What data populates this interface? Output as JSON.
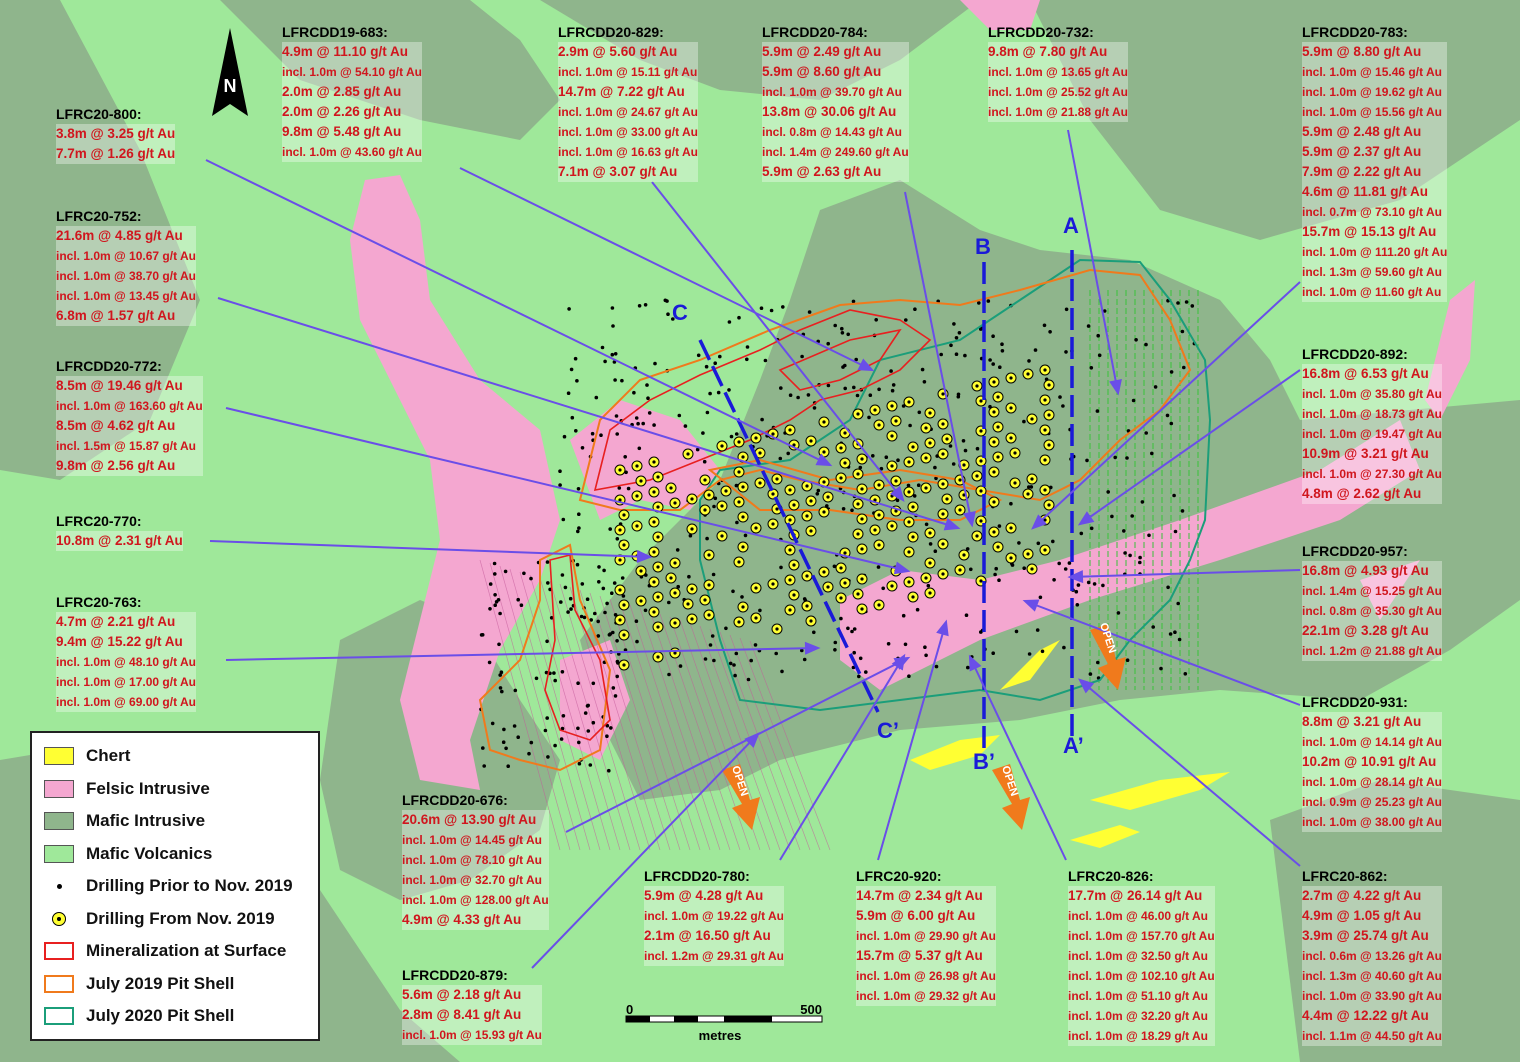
{
  "map": {
    "colors": {
      "mafic_volcanics": "#9fe89a",
      "mafic_intrusive": "#8fb58c",
      "felsic_intrusive": "#f4a7d0",
      "chert": "#ffff33",
      "mineralization": "#e82020",
      "pit_2019": "#f07a1c",
      "pit_2020": "#1b9e7a",
      "section_line": "#1a1ad8",
      "callout_arrow": "#6a4ee8",
      "assay_text": "#d0161e"
    }
  },
  "sections": [
    {
      "id": "A",
      "start": "A",
      "end": "A’"
    },
    {
      "id": "B",
      "start": "B",
      "end": "B’"
    },
    {
      "id": "C",
      "start": "C",
      "end": "C’"
    }
  ],
  "open_labels": [
    "OPEN",
    "OPEN",
    "OPEN"
  ],
  "north_label": "N",
  "scale": {
    "start": "0",
    "end": "500",
    "unit": "metres"
  },
  "legend": [
    {
      "label": "Chert",
      "symbol": "chert-swatch"
    },
    {
      "label": "Felsic Intrusive",
      "symbol": "felsic-swatch"
    },
    {
      "label": "Mafic Intrusive",
      "symbol": "mafic-intrusive-swatch"
    },
    {
      "label": "Mafic Volcanics",
      "symbol": "mafic-volcanics-swatch"
    },
    {
      "label": "Drilling Prior to Nov. 2019",
      "symbol": "black-dot"
    },
    {
      "label": "Drilling From Nov. 2019",
      "symbol": "yellow-circle-dot"
    },
    {
      "label": "Mineralization at Surface",
      "symbol": "red-outline"
    },
    {
      "label": "July 2019 Pit Shell",
      "symbol": "orange-outline"
    },
    {
      "label": "July 2020 Pit Shell",
      "symbol": "green-outline"
    }
  ],
  "callouts": [
    {
      "hole": "LFRCDD19-683:",
      "lines": [
        "4.9m @ 11.10 g/t Au",
        "incl. 1.0m @ 54.10 g/t Au",
        "2.0m @ 2.85 g/t Au",
        "2.0m @ 2.26 g/t Au",
        "9.8m @ 5.48 g/t Au",
        "incl. 1.0m @ 43.60 g/t Au"
      ]
    },
    {
      "hole": "LFRCDD20-829:",
      "lines": [
        "2.9m @ 5.60 g/t Au",
        "incl. 1.0m @ 15.11 g/t Au",
        "14.7m @ 7.22 g/t Au",
        "incl. 1.0m @ 24.67 g/t Au",
        "incl. 1.0m @ 33.00 g/t Au",
        "incl. 1.0m @ 16.63 g/t Au",
        "7.1m @ 3.07 g/t Au"
      ]
    },
    {
      "hole": "LFRCDD20-784:",
      "lines": [
        "5.9m @ 2.49 g/t Au",
        "5.9m @ 8.60 g/t Au",
        "incl. 1.0m @ 39.70 g/t Au",
        "13.8m @ 30.06 g/t Au",
        "incl. 0.8m @ 14.43 g/t Au",
        "incl. 1.4m @ 249.60 g/t Au",
        "5.9m @ 2.63 g/t Au"
      ]
    },
    {
      "hole": "LFRCDD20-732:",
      "lines": [
        "9.8m @ 7.80 g/t Au",
        "incl. 1.0m @ 13.65 g/t Au",
        "incl. 1.0m @ 25.52 g/t Au",
        "incl. 1.0m @ 21.88 g/t Au"
      ]
    },
    {
      "hole": "LFRCDD20-783:",
      "lines": [
        "5.9m @ 8.80 g/t Au",
        "incl. 1.0m @ 15.46 g/t Au",
        "incl. 1.0m @ 19.62 g/t Au",
        "incl. 1.0m @ 15.56 g/t Au",
        "5.9m @ 2.48 g/t Au",
        "5.9m @ 2.37 g/t Au",
        "7.9m @ 2.22 g/t Au",
        "4.6m @ 11.81 g/t Au",
        "incl. 0.7m @ 73.10 g/t Au",
        "15.7m @ 15.13 g/t Au",
        "incl. 1.0m @ 111.20 g/t Au",
        "incl. 1.3m @ 59.60 g/t Au",
        "incl. 1.0m @ 11.60 g/t Au"
      ]
    },
    {
      "hole": "LFRC20-800:",
      "lines": [
        "3.8m @ 3.25 g/t Au",
        "7.7m @ 1.26 g/t Au"
      ]
    },
    {
      "hole": "LFRC20-752:",
      "lines": [
        "21.6m @ 4.85 g/t Au",
        "incl. 1.0m @ 10.67 g/t Au",
        "incl. 1.0m @ 38.70 g/t Au",
        "incl. 1.0m @ 13.45 g/t Au",
        "6.8m @ 1.57 g/t Au"
      ]
    },
    {
      "hole": "LFRCDD20-772:",
      "lines": [
        "8.5m @ 19.46 g/t Au",
        "incl. 1.0m @ 163.60 g/t Au",
        "8.5m @ 4.62 g/t Au",
        "incl. 1.5m @ 15.87 g/t Au",
        "9.8m @ 2.56 g/t Au"
      ]
    },
    {
      "hole": "LFRC20-770:",
      "lines": [
        "10.8m @ 2.31 g/t Au"
      ]
    },
    {
      "hole": "LFRC20-763:",
      "lines": [
        "4.7m @ 2.21 g/t Au",
        "9.4m @ 15.22 g/t Au",
        "incl. 1.0m @ 48.10 g/t Au",
        "incl. 1.0m @ 17.00 g/t Au",
        "incl. 1.0m @ 69.00 g/t Au"
      ]
    },
    {
      "hole": "LFRCDD20-892:",
      "lines": [
        "16.8m @ 6.53 g/t Au",
        "incl. 1.0m @ 35.80 g/t Au",
        "incl. 1.0m @ 18.73 g/t Au",
        "incl. 1.0m @ 19.47 g/t Au",
        "10.9m @ 3.21 g/t Au",
        "incl. 1.0m @ 27.30 g/t Au",
        "4.8m @ 2.62 g/t Au"
      ]
    },
    {
      "hole": "LFRCDD20-957:",
      "lines": [
        "16.8m @ 4.93 g/t Au",
        "incl. 1.4m @ 15.25 g/t Au",
        "incl. 0.8m @ 35.30 g/t Au",
        "22.1m @ 3.28 g/t Au",
        "incl. 1.2m @ 21.88 g/t Au"
      ]
    },
    {
      "hole": "LFRCDD20-931:",
      "lines": [
        "8.8m @ 3.21 g/t Au",
        "incl. 1.0m @ 14.14 g/t Au",
        "10.2m @ 10.91 g/t Au",
        "incl. 1.0m @ 28.14 g/t Au",
        "incl. 0.9m @ 25.23 g/t Au",
        "incl. 1.0m @ 38.00 g/t Au"
      ]
    },
    {
      "hole": "LFRCDD20-676:",
      "lines": [
        "20.6m @ 13.90 g/t Au",
        "incl. 1.0m @ 14.45 g/t Au",
        "incl. 1.0m @ 78.10 g/t Au",
        "incl. 1.0m @ 32.70 g/t Au",
        "incl. 1.0m @ 128.00 g/t Au",
        "4.9m @ 4.33 g/t Au"
      ]
    },
    {
      "hole": "LFRCDD20-879:",
      "lines": [
        "5.6m @ 2.18 g/t Au",
        "2.8m @ 8.41 g/t Au",
        "incl. 1.0m @ 15.93 g/t Au"
      ]
    },
    {
      "hole": "LFRCDD20-780:",
      "lines": [
        "5.9m @ 4.28 g/t Au",
        "incl. 1.0m @ 19.22 g/t Au",
        "2.1m @ 16.50 g/t Au",
        "incl. 1.2m @ 29.31 g/t Au"
      ]
    },
    {
      "hole": "LFRC20-920:",
      "lines": [
        "14.7m @ 2.34 g/t Au",
        "5.9m @ 6.00 g/t Au",
        "incl. 1.0m @ 29.90 g/t Au",
        "15.7m @ 5.37 g/t Au",
        "incl. 1.0m @ 26.98 g/t Au",
        "incl. 1.0m @ 29.32 g/t Au"
      ]
    },
    {
      "hole": "LFRC20-826:",
      "lines": [
        "17.7m @ 26.14 g/t Au",
        "incl. 1.0m @ 46.00 g/t Au",
        "incl. 1.0m @ 157.70 g/t Au",
        "incl. 1.0m @ 32.50 g/t Au",
        "incl. 1.0m @ 102.10 g/t Au",
        "incl. 1.0m @ 51.10 g/t Au",
        "incl. 1.0m @ 32.20 g/t Au",
        "incl. 1.0m @ 18.29 g/t Au"
      ]
    },
    {
      "hole": "LFRC20-862:",
      "lines": [
        "2.7m @ 4.22 g/t Au",
        "4.9m @ 1.05 g/t Au",
        "3.9m @ 25.74 g/t Au",
        "incl. 0.6m @ 13.26 g/t Au",
        "incl. 1.3m @ 40.60 g/t Au",
        "incl. 1.0m @ 33.90 g/t Au",
        "4.4m @ 12.22 g/t Au",
        "incl. 1.1m @ 44.50 g/t Au"
      ]
    }
  ]
}
